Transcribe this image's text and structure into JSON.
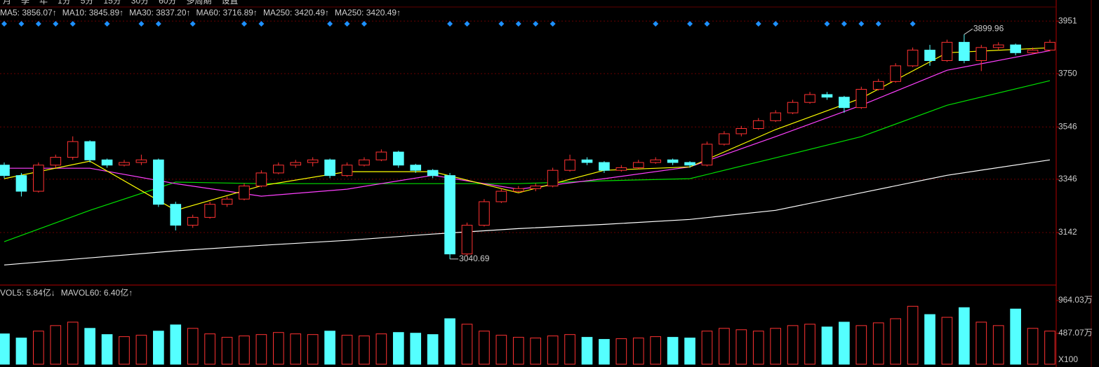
{
  "tabs": [
    "月",
    "季",
    "年",
    "1分",
    "5分",
    "15分",
    "30分",
    "60分",
    "多周期",
    "设置"
  ],
  "chart_data": [
    {
      "type": "candlestick",
      "legend": [
        {
          "text": "MA5: 3856.07↑",
          "color": "#ffffff"
        },
        {
          "text": "MA10: 3845.89↑",
          "color": "#ffff00"
        },
        {
          "text": "MA30: 3837.20↑",
          "color": "#ff40ff"
        },
        {
          "text": "MA60: 3716.89↑",
          "color": "#00e000"
        },
        {
          "text": "MA250: 3420.49↑",
          "color": "#40c8ff"
        },
        {
          "text": "MA250: 3420.49↑",
          "color": "#ffffff"
        }
      ],
      "open": [
        3400,
        3360,
        3300,
        3400,
        3430,
        3490,
        3420,
        3400,
        3410,
        3420,
        3250,
        3170,
        3200,
        3250,
        3270,
        3320,
        3370,
        3400,
        3410,
        3420,
        3360,
        3400,
        3420,
        3450,
        3400,
        3380,
        3360,
        3060,
        3170,
        3260,
        3300,
        3310,
        3320,
        3380,
        3420,
        3410,
        3380,
        3390,
        3410,
        3420,
        3410,
        3400,
        3480,
        3520,
        3540,
        3570,
        3600,
        3640,
        3670,
        3660,
        3620,
        3690,
        3720,
        3780,
        3840,
        3800,
        3870,
        3800,
        3850,
        3860,
        3830,
        3840
      ],
      "high": [
        3410,
        3370,
        3410,
        3440,
        3510,
        3495,
        3425,
        3420,
        3440,
        3425,
        3260,
        3210,
        3260,
        3280,
        3330,
        3380,
        3410,
        3420,
        3430,
        3425,
        3410,
        3430,
        3460,
        3455,
        3405,
        3385,
        3370,
        3180,
        3270,
        3310,
        3320,
        3330,
        3390,
        3440,
        3430,
        3415,
        3400,
        3420,
        3430,
        3425,
        3415,
        3490,
        3530,
        3550,
        3580,
        3610,
        3650,
        3680,
        3680,
        3665,
        3700,
        3730,
        3790,
        3850,
        3860,
        3880,
        3899.96,
        3860,
        3870,
        3865,
        3850,
        3880
      ],
      "low": [
        3350,
        3280,
        3295,
        3390,
        3420,
        3410,
        3390,
        3395,
        3400,
        3240,
        3150,
        3160,
        3195,
        3240,
        3265,
        3315,
        3365,
        3390,
        3395,
        3350,
        3355,
        3395,
        3415,
        3390,
        3370,
        3350,
        3040.69,
        3050,
        3165,
        3255,
        3295,
        3300,
        3315,
        3375,
        3400,
        3370,
        3375,
        3385,
        3405,
        3400,
        3390,
        3395,
        3475,
        3510,
        3535,
        3565,
        3595,
        3635,
        3650,
        3600,
        3615,
        3685,
        3715,
        3775,
        3780,
        3795,
        3790,
        3760,
        3840,
        3820,
        3825,
        3835
      ],
      "close": [
        3360,
        3300,
        3400,
        3430,
        3490,
        3420,
        3400,
        3410,
        3420,
        3250,
        3170,
        3200,
        3250,
        3270,
        3320,
        3370,
        3400,
        3410,
        3420,
        3360,
        3400,
        3420,
        3450,
        3400,
        3380,
        3360,
        3060,
        3170,
        3260,
        3300,
        3310,
        3320,
        3380,
        3420,
        3410,
        3380,
        3390,
        3410,
        3420,
        3410,
        3400,
        3480,
        3520,
        3540,
        3570,
        3600,
        3640,
        3670,
        3660,
        3620,
        3690,
        3720,
        3780,
        3840,
        3800,
        3870,
        3800,
        3850,
        3860,
        3830,
        3840,
        3870
      ],
      "up_color": "#ff3232",
      "down_color": "#54ffff",
      "lines": [
        {
          "color": "#ffffff",
          "x": [
            0,
            5,
            10,
            15,
            20,
            25,
            30,
            35,
            40,
            45,
            50,
            55,
            61
          ],
          "values": [
            3018,
            3045,
            3072,
            3093,
            3112,
            3136,
            3157,
            3173,
            3192,
            3227,
            3294,
            3361,
            3420
          ]
        },
        {
          "color": "#00e000",
          "x": [
            0,
            5,
            10,
            15,
            20,
            25,
            30,
            35,
            40,
            45,
            50,
            55,
            61
          ],
          "values": [
            3107,
            3227,
            3335,
            3329,
            3329,
            3329,
            3329,
            3340,
            3348,
            3428,
            3509,
            3629,
            3723
          ]
        },
        {
          "color": "#ff40ff",
          "x": [
            0,
            5,
            10,
            15,
            20,
            25,
            30,
            35,
            40,
            45,
            50,
            55,
            61
          ],
          "values": [
            3388,
            3388,
            3329,
            3281,
            3308,
            3361,
            3308,
            3348,
            3393,
            3509,
            3629,
            3763,
            3838
          ]
        },
        {
          "color": "#ffff00",
          "x": [
            0,
            5,
            10,
            15,
            20,
            25,
            30,
            35,
            40,
            45,
            50,
            55,
            61
          ],
          "values": [
            3348,
            3415,
            3227,
            3321,
            3375,
            3375,
            3294,
            3380,
            3393,
            3536,
            3656,
            3830,
            3849
          ]
        }
      ],
      "annotations": [
        {
          "label": "3899.96",
          "value": 3899.96
        },
        {
          "label": "3040.69",
          "value": 3040.69
        }
      ],
      "signals": {
        "color": "#1e90ff",
        "x": [
          0,
          1,
          2,
          3,
          4,
          6,
          8,
          9,
          11,
          14,
          15,
          19,
          20,
          21,
          26,
          27,
          29,
          30,
          31,
          32,
          38,
          40,
          41,
          44,
          45,
          48,
          49,
          50,
          51,
          53
        ]
      },
      "ylim": [
        2941,
        4005
      ],
      "yticks": [
        3142,
        3346,
        3546,
        3750,
        3951
      ],
      "grid": true
    },
    {
      "type": "bar",
      "legend": [
        {
          "text": "VOL5: 5.84亿↓",
          "color": "#ffffff"
        },
        {
          "text": "MAVOL60: 6.40亿↑",
          "color": "#ffffff"
        }
      ],
      "values": [
        480,
        420,
        520,
        600,
        650,
        560,
        470,
        440,
        460,
        520,
        610,
        560,
        480,
        430,
        450,
        470,
        500,
        480,
        470,
        520,
        460,
        450,
        480,
        500,
        490,
        470,
        700,
        620,
        520,
        460,
        430,
        420,
        450,
        470,
        430,
        400,
        410,
        420,
        440,
        430,
        420,
        520,
        560,
        540,
        520,
        560,
        600,
        620,
        580,
        650,
        600,
        640,
        700,
        880,
        760,
        720,
        860,
        650,
        600,
        840,
        560,
        520
      ],
      "ylim": [
        40.5,
        1156.9
      ],
      "yticks": [
        {
          "value": 487.07,
          "label": "487.07万"
        },
        {
          "value": 964.03,
          "label": "964.03万"
        }
      ],
      "unit_label": "X100"
    }
  ]
}
